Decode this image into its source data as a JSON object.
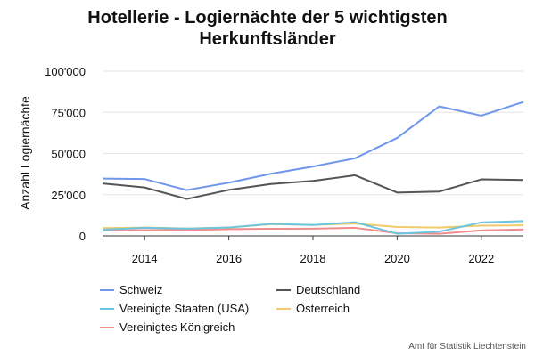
{
  "chart_data": {
    "type": "line",
    "title_line1": "Hotellerie - Logiernächte der 5 wichtigsten",
    "title_line2": "Herkunftsländer",
    "xlabel": "",
    "ylabel": "Anzahl Logiernächte",
    "x": [
      2013,
      2014,
      2015,
      2016,
      2017,
      2018,
      2019,
      2020,
      2021,
      2022,
      2023
    ],
    "xlim": [
      2013,
      2023
    ],
    "ylim": [
      0,
      100000
    ],
    "x_ticks": [
      2014,
      2016,
      2018,
      2020,
      2022
    ],
    "y_ticks": [
      0,
      25000,
      50000,
      75000,
      100000
    ],
    "y_tick_labels": [
      "0",
      "25'000",
      "50'000",
      "75'000",
      "100'000"
    ],
    "grid": true,
    "legend_position": "bottom",
    "series": [
      {
        "name": "Schweiz",
        "color": "#6f96ec",
        "values": [
          34800,
          34500,
          27800,
          32300,
          37700,
          42100,
          47100,
          59500,
          78600,
          73000,
          81300
        ]
      },
      {
        "name": "Deutschland",
        "color": "#555555",
        "values": [
          31800,
          29400,
          22400,
          27900,
          31500,
          33400,
          36800,
          26300,
          26900,
          34300,
          33900
        ]
      },
      {
        "name": "Vereinigte Staaten (USA)",
        "color": "#6cc5df",
        "values": [
          3800,
          4900,
          4400,
          5100,
          7300,
          6600,
          8300,
          1300,
          2600,
          8200,
          9000
        ]
      },
      {
        "name": "Österreich",
        "color": "#f0ca6b",
        "values": [
          4700,
          5100,
          4500,
          5100,
          7100,
          6700,
          7500,
          5400,
          5100,
          6200,
          6400
        ]
      },
      {
        "name": "Vereinigtes Königreich",
        "color": "#f08c8c",
        "values": [
          3200,
          3500,
          3600,
          4100,
          4300,
          4400,
          4900,
          1600,
          1300,
          3300,
          3900
        ]
      }
    ]
  },
  "source": "Amt für Statistik Liechtenstein"
}
